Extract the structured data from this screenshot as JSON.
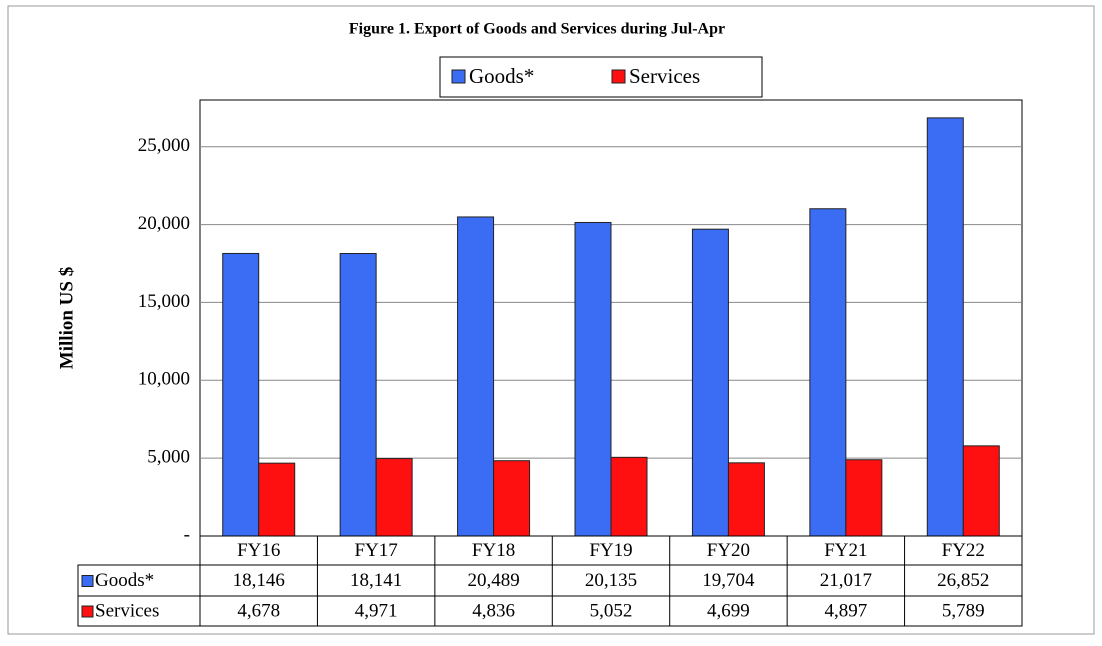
{
  "chart_data": {
    "type": "bar",
    "title": "Figure 1. Export of Goods and Services during Jul-Apr",
    "ylabel": "Million US $",
    "categories": [
      "FY16",
      "FY17",
      "FY18",
      "FY19",
      "FY20",
      "FY21",
      "FY22"
    ],
    "series": [
      {
        "name": "Goods*",
        "color": "#3b6cf4",
        "values": [
          18146,
          18141,
          20489,
          20135,
          19704,
          21017,
          26852
        ],
        "value_labels": [
          "18,146",
          "18,141",
          "20,489",
          "20,135",
          "19,704",
          "21,017",
          "26,852"
        ]
      },
      {
        "name": "Services",
        "color": "#ff1010",
        "values": [
          4678,
          4971,
          4836,
          5052,
          4699,
          4897,
          5789
        ],
        "value_labels": [
          "4,678",
          "4,971",
          "4,836",
          "5,052",
          "4,699",
          "4,897",
          "5,789"
        ]
      }
    ],
    "ylim": [
      0,
      28000
    ],
    "yticks": [
      {
        "value": 0,
        "label": "-"
      },
      {
        "value": 5000,
        "label": "5,000"
      },
      {
        "value": 10000,
        "label": "10,000"
      },
      {
        "value": 15000,
        "label": "15,000"
      },
      {
        "value": 20000,
        "label": "20,000"
      },
      {
        "value": 25000,
        "label": "25,000"
      }
    ],
    "grid": true,
    "legend": "top"
  }
}
